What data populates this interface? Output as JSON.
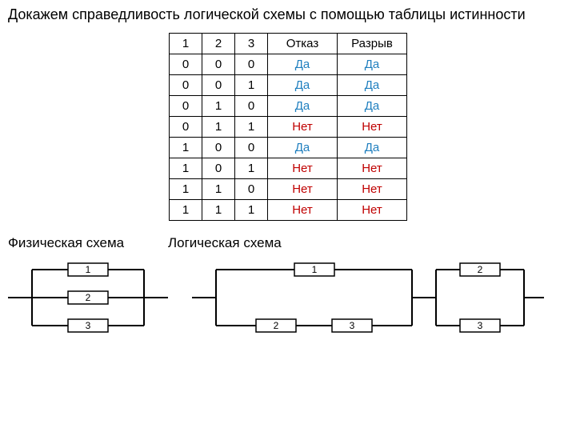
{
  "title": "Докажем справедливость логической схемы с помощью таблицы истинности",
  "table": {
    "headers": [
      "1",
      "2",
      "3",
      "Отказ",
      "Разрыв"
    ],
    "yes_label": "Да",
    "no_label": "Нет",
    "yes_color": "#1f7fbf",
    "no_color": "#c00000",
    "rows": [
      {
        "c1": "0",
        "c2": "0",
        "c3": "0",
        "otkaz": "yes",
        "razryv": "yes"
      },
      {
        "c1": "0",
        "c2": "0",
        "c3": "1",
        "otkaz": "yes",
        "razryv": "yes"
      },
      {
        "c1": "0",
        "c2": "1",
        "c3": "0",
        "otkaz": "yes",
        "razryv": "yes"
      },
      {
        "c1": "0",
        "c2": "1",
        "c3": "1",
        "otkaz": "no",
        "razryv": "no"
      },
      {
        "c1": "1",
        "c2": "0",
        "c3": "0",
        "otkaz": "yes",
        "razryv": "yes"
      },
      {
        "c1": "1",
        "c2": "0",
        "c3": "1",
        "otkaz": "no",
        "razryv": "no"
      },
      {
        "c1": "1",
        "c2": "1",
        "c3": "0",
        "otkaz": "no",
        "razryv": "no"
      },
      {
        "c1": "1",
        "c2": "1",
        "c3": "1",
        "otkaz": "no",
        "razryv": "no"
      }
    ]
  },
  "subtitles": {
    "physical": "Физическая схема",
    "logical": "Логическая схема"
  },
  "physical": {
    "labels": {
      "r1": "1",
      "r2": "2",
      "r3": "3"
    }
  },
  "logical": {
    "labels": {
      "r1": "1",
      "r2": "2",
      "r3a": "2",
      "r3b": "3",
      "r4": "3"
    }
  }
}
